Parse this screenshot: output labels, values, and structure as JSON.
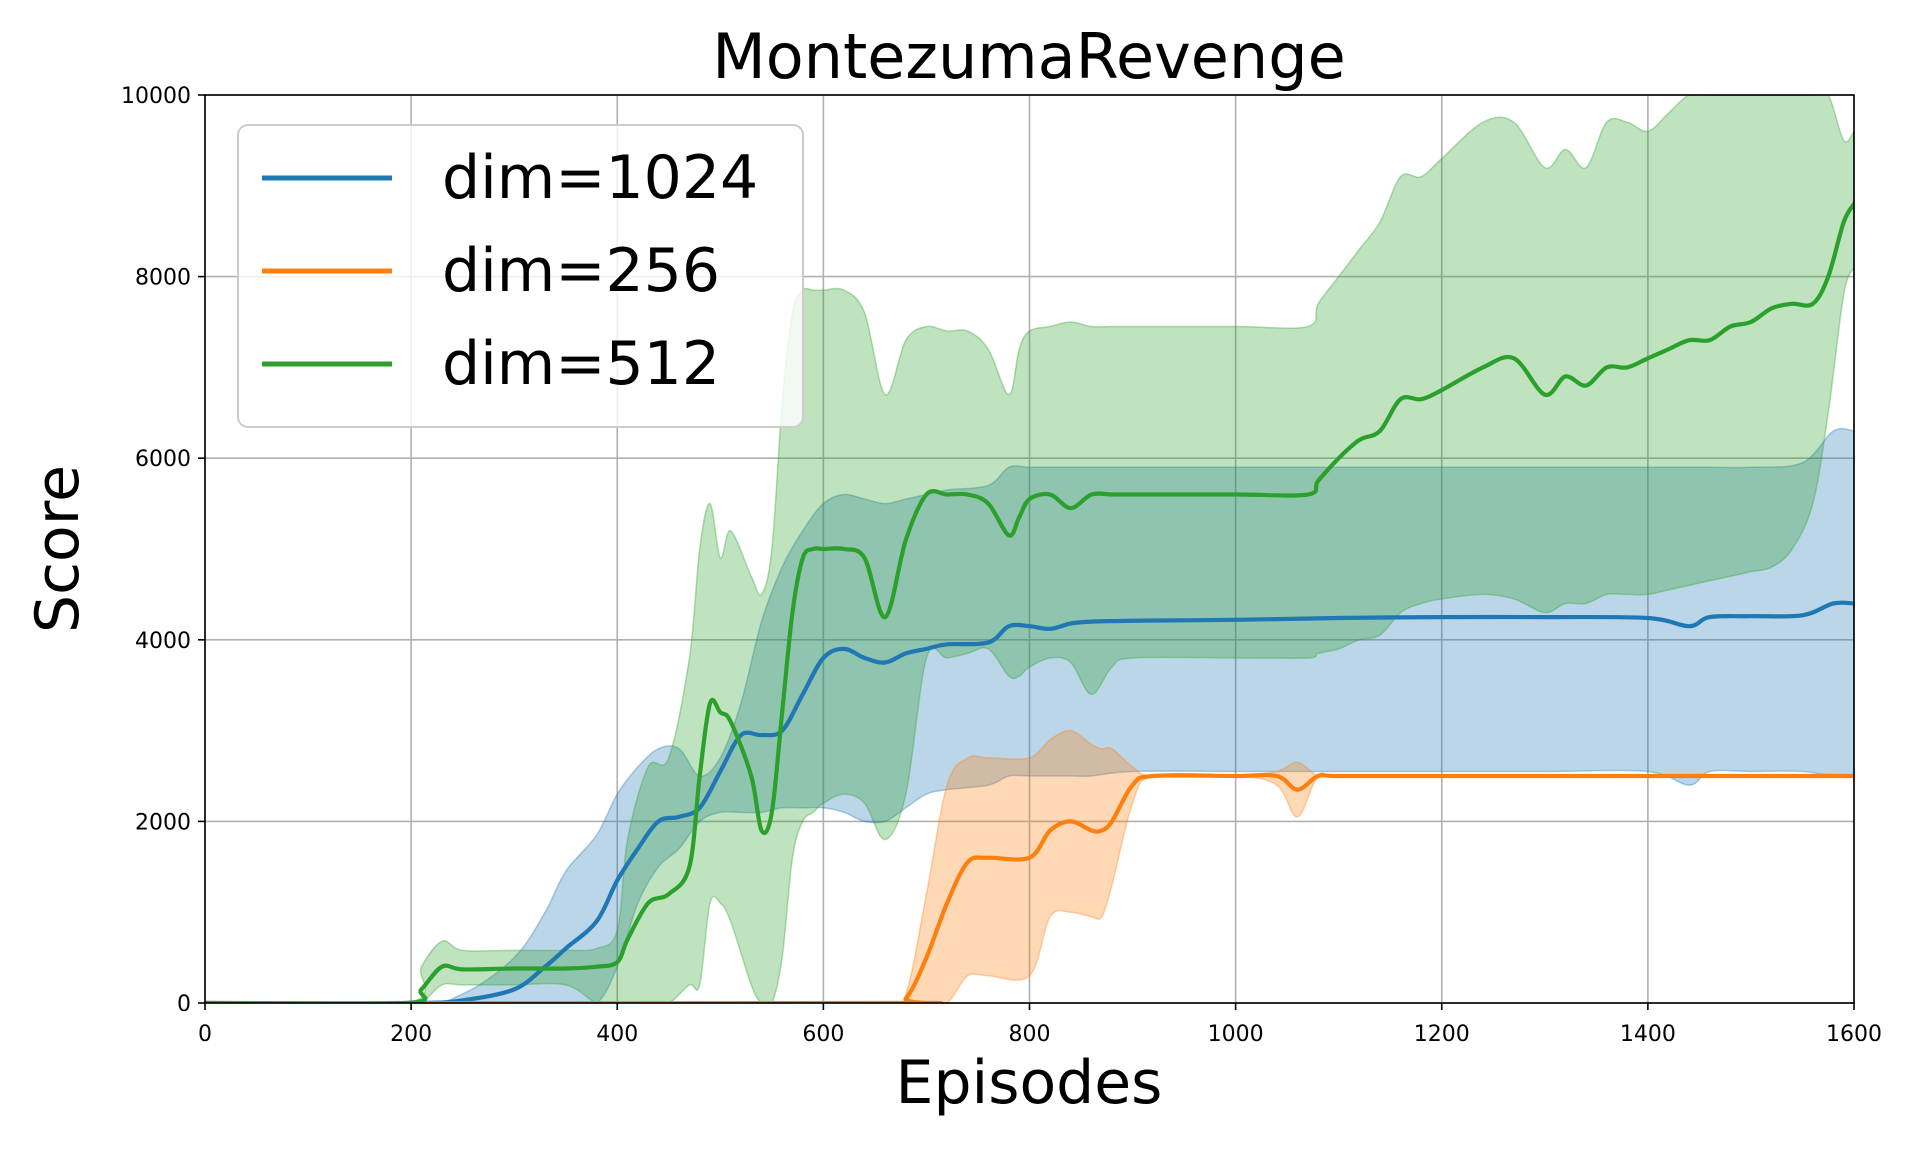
{
  "chart_data": {
    "type": "line",
    "title": "MontezumaRevenge",
    "xlabel": "Episodes",
    "ylabel": "Score",
    "xlim": [
      0,
      1600
    ],
    "ylim": [
      0,
      10000
    ],
    "xticks": [
      0,
      200,
      400,
      600,
      800,
      1000,
      1200,
      1400,
      1600
    ],
    "yticks": [
      0,
      2000,
      4000,
      6000,
      8000,
      10000
    ],
    "grid": true,
    "legend_position": "top-left",
    "series": [
      {
        "name": "dim=1024",
        "color": "#1f77b4",
        "x": [
          0,
          200,
          250,
          300,
          330,
          350,
          380,
          400,
          420,
          440,
          460,
          480,
          500,
          520,
          540,
          560,
          580,
          600,
          620,
          640,
          660,
          680,
          700,
          720,
          760,
          780,
          800,
          820,
          840,
          860,
          900,
          1000,
          1100,
          1200,
          1300,
          1400,
          1440,
          1460,
          1500,
          1550,
          1580,
          1600
        ],
        "mean": [
          0,
          0,
          30,
          150,
          400,
          600,
          900,
          1350,
          1700,
          2000,
          2050,
          2150,
          2550,
          2950,
          2950,
          3000,
          3400,
          3800,
          3900,
          3800,
          3750,
          3850,
          3900,
          3950,
          3970,
          4150,
          4150,
          4120,
          4180,
          4200,
          4210,
          4220,
          4240,
          4250,
          4250,
          4240,
          4150,
          4250,
          4260,
          4270,
          4400,
          4400
        ],
        "upper": [
          0,
          0,
          100,
          500,
          1000,
          1450,
          1850,
          2300,
          2600,
          2800,
          2800,
          2500,
          2700,
          3300,
          4200,
          4800,
          5200,
          5500,
          5600,
          5550,
          5500,
          5550,
          5600,
          5650,
          5700,
          5900,
          5900,
          5900,
          5900,
          5900,
          5900,
          5900,
          5900,
          5900,
          5900,
          5900,
          5900,
          5900,
          5900,
          5950,
          6300,
          6300
        ],
        "lower": [
          0,
          0,
          0,
          0,
          0,
          0,
          0,
          400,
          1100,
          1500,
          1700,
          2000,
          2100,
          2100,
          2100,
          2150,
          2150,
          2150,
          2100,
          2000,
          2000,
          2150,
          2300,
          2350,
          2400,
          2500,
          2500,
          2500,
          2500,
          2500,
          2550,
          2550,
          2550,
          2550,
          2550,
          2550,
          2400,
          2550,
          2550,
          2550,
          2500,
          2500
        ]
      },
      {
        "name": "dim=256",
        "color": "#ff7f0e",
        "x": [
          0,
          660,
          680,
          700,
          720,
          740,
          760,
          800,
          820,
          840,
          860,
          870,
          880,
          900,
          920,
          1000,
          1040,
          1060,
          1080,
          1100,
          1200,
          1400,
          1600
        ],
        "mean": [
          0,
          0,
          50,
          500,
          1100,
          1550,
          1600,
          1600,
          1900,
          2000,
          1900,
          1900,
          2000,
          2400,
          2500,
          2500,
          2500,
          2350,
          2500,
          2500,
          2500,
          2500,
          2500
        ],
        "upper": [
          0,
          0,
          100,
          1200,
          2400,
          2700,
          2700,
          2700,
          2900,
          3000,
          2850,
          2800,
          2800,
          2600,
          2500,
          2500,
          2550,
          2650,
          2500,
          2500,
          2500,
          2500,
          2500
        ],
        "lower": [
          0,
          0,
          0,
          0,
          0,
          300,
          300,
          300,
          950,
          1000,
          950,
          950,
          1300,
          2200,
          2500,
          2500,
          2400,
          2050,
          2500,
          2500,
          2500,
          2500,
          2500
        ]
      },
      {
        "name": "dim=512",
        "color": "#2ca02c",
        "x": [
          0,
          195,
          210,
          230,
          250,
          300,
          350,
          380,
          400,
          410,
          430,
          450,
          470,
          480,
          490,
          500,
          510,
          530,
          540,
          550,
          560,
          570,
          580,
          590,
          600,
          620,
          640,
          660,
          680,
          700,
          720,
          740,
          760,
          780,
          790,
          800,
          820,
          840,
          860,
          880,
          900,
          1000,
          1070,
          1080,
          1100,
          1120,
          1140,
          1160,
          1180,
          1200,
          1240,
          1270,
          1300,
          1320,
          1340,
          1360,
          1380,
          1400,
          1420,
          1440,
          1460,
          1480,
          1500,
          1520,
          1540,
          1560,
          1575,
          1590,
          1600
        ],
        "mean": [
          0,
          0,
          150,
          400,
          370,
          380,
          380,
          400,
          450,
          700,
          1100,
          1200,
          1500,
          2500,
          3300,
          3200,
          3100,
          2500,
          1900,
          2100,
          3200,
          4300,
          4900,
          5000,
          5000,
          5000,
          4900,
          4250,
          5100,
          5600,
          5600,
          5600,
          5500,
          5150,
          5350,
          5550,
          5600,
          5450,
          5600,
          5600,
          5600,
          5600,
          5600,
          5750,
          6000,
          6200,
          6300,
          6650,
          6650,
          6750,
          7000,
          7100,
          6700,
          6900,
          6800,
          7000,
          7000,
          7100,
          7200,
          7300,
          7300,
          7450,
          7500,
          7650,
          7700,
          7700,
          8000,
          8600,
          8800
        ],
        "upper": [
          0,
          0,
          400,
          680,
          580,
          580,
          580,
          600,
          800,
          1800,
          2600,
          2700,
          3800,
          5000,
          5500,
          4900,
          5200,
          4700,
          4500,
          5000,
          6600,
          7600,
          7850,
          7850,
          7850,
          7850,
          7600,
          6700,
          7300,
          7450,
          7400,
          7400,
          7200,
          6700,
          7200,
          7400,
          7450,
          7500,
          7450,
          7450,
          7450,
          7450,
          7450,
          7700,
          8000,
          8300,
          8600,
          9100,
          9100,
          9300,
          9700,
          9700,
          9200,
          9400,
          9200,
          9700,
          9700,
          9600,
          9800,
          10000,
          10000,
          10000,
          10000,
          10000,
          10000,
          10000,
          10000,
          9500,
          9600
        ],
        "lower": [
          0,
          0,
          0,
          200,
          200,
          200,
          200,
          0,
          0,
          0,
          0,
          0,
          200,
          200,
          1100,
          1100,
          900,
          200,
          0,
          0,
          500,
          1600,
          2000,
          2100,
          2200,
          2300,
          2200,
          1800,
          2300,
          3800,
          3800,
          3850,
          3900,
          3600,
          3600,
          3700,
          3800,
          3750,
          3400,
          3700,
          3800,
          3800,
          3800,
          3850,
          3900,
          4000,
          4050,
          4300,
          4400,
          4450,
          4500,
          4450,
          4300,
          4400,
          4400,
          4500,
          4500,
          4500,
          4550,
          4600,
          4650,
          4700,
          4750,
          4800,
          5000,
          5500,
          6500,
          7800,
          8100
        ]
      }
    ]
  }
}
